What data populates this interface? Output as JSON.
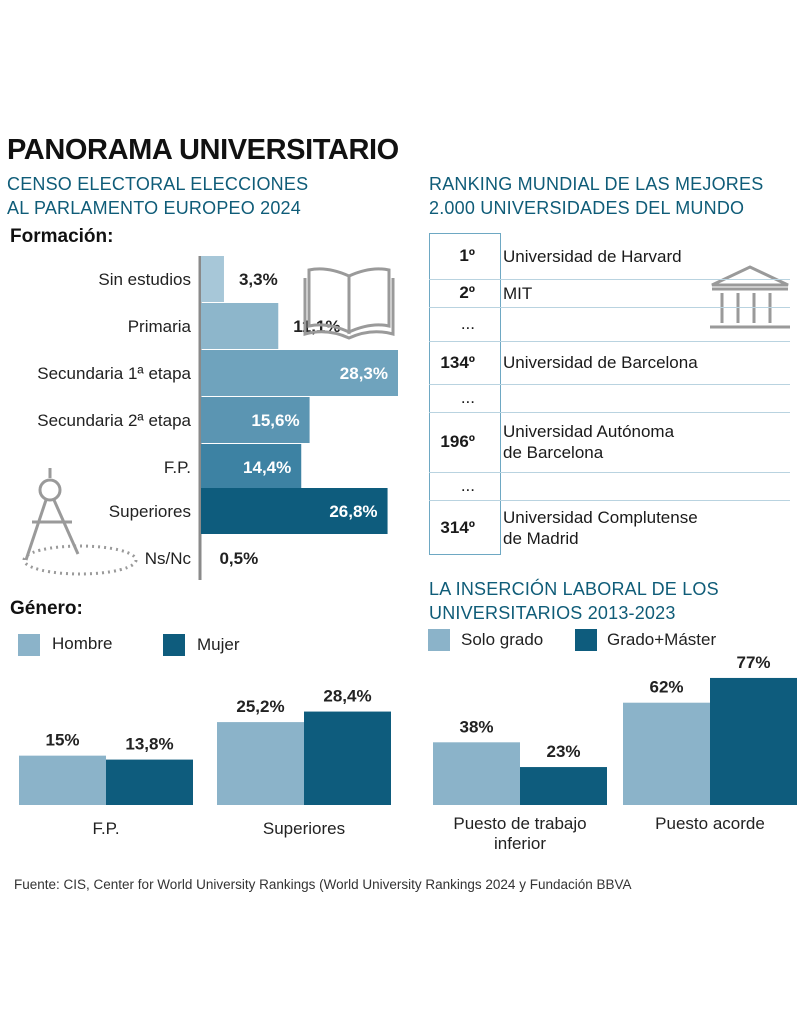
{
  "title": "PANORAMA UNIVERSITARIO",
  "censo": {
    "subtitle_line1": "CENSO ELECTORAL ELECCIONES",
    "subtitle_line2": "AL PARLAMENTO EUROPEO 2024",
    "formacion_label": "Formación:",
    "genero_label": "Género:"
  },
  "ranking": {
    "subtitle_line1": "RANKING MUNDIAL DE LAS MEJORES",
    "subtitle_line2": "2.000 UNIVERSIDADES DEL MUNDO",
    "rows": [
      {
        "pos": "1º",
        "name_line1": "Universidad de Harvard",
        "name_line2": ""
      },
      {
        "pos": "2º",
        "name_line1": "MIT",
        "name_line2": ""
      },
      {
        "pos": "...",
        "name_line1": "",
        "name_line2": ""
      },
      {
        "pos": "134º",
        "name_line1": "Universidad de Barcelona",
        "name_line2": ""
      },
      {
        "pos": "...",
        "name_line1": "",
        "name_line2": ""
      },
      {
        "pos": "196º",
        "name_line1": "Universidad Autónoma",
        "name_line2": "de Barcelona"
      },
      {
        "pos": "...",
        "name_line1": "",
        "name_line2": ""
      },
      {
        "pos": "314º",
        "name_line1": "Universidad Complutense",
        "name_line2": "de Madrid"
      }
    ]
  },
  "insercion": {
    "subtitle_line1": "LA INSERCIÓN LABORAL DE LOS",
    "subtitle_line2": "UNIVERSITARIOS 2013-2023"
  },
  "source": "Fuente: CIS, Center for World University Rankings (World University Rankings 2024 y Fundación BBVA",
  "icons": [
    "book-icon",
    "compass-icon",
    "university-building-icon"
  ],
  "chart_data": [
    {
      "type": "bar",
      "orientation": "horizontal",
      "title": "Formación:",
      "categories": [
        "Sin estudios",
        "Primaria",
        "Secundaria 1ª etapa",
        "Secundaria 2ª etapa",
        "F.P.",
        "Superiores",
        "Ns/Nc"
      ],
      "values": [
        3.3,
        11.1,
        28.3,
        15.6,
        14.4,
        26.8,
        0.5
      ],
      "value_labels": [
        "3,3%",
        "11,1%",
        "28,3%",
        "15,6%",
        "14,4%",
        "26,8%",
        "0,5%"
      ],
      "colors": [
        "#a7c7d8",
        "#8db6cb",
        "#6fa3bd",
        "#5b95b2",
        "#3d82a3",
        "#0e5c7d",
        "#9a9a9a"
      ],
      "unit": "%"
    },
    {
      "type": "bar",
      "title": "Género:",
      "categories": [
        "F.P.",
        "Superiores"
      ],
      "series": [
        {
          "name": "Hombre",
          "values": [
            15,
            25.2
          ],
          "labels": [
            "15%",
            "25,2%"
          ],
          "color": "#8bb3c9"
        },
        {
          "name": "Mujer",
          "values": [
            13.8,
            28.4
          ],
          "labels": [
            "13,8%",
            "28,4%"
          ],
          "color": "#0e5c7d"
        }
      ],
      "unit": "%"
    },
    {
      "type": "bar",
      "title": "LA INSERCIÓN LABORAL DE LOS UNIVERSITARIOS 2013-2023",
      "categories": [
        "Puesto de trabajo inferior",
        "Puesto acorde"
      ],
      "category_lines": [
        [
          "Puesto de trabajo",
          "inferior"
        ],
        [
          "Puesto acorde"
        ]
      ],
      "series": [
        {
          "name": "Solo grado",
          "values": [
            38,
            62
          ],
          "labels": [
            "38%",
            "62%"
          ],
          "color": "#8bb3c9"
        },
        {
          "name": "Grado+Máster",
          "values": [
            23,
            77
          ],
          "labels": [
            "23%",
            "77%"
          ],
          "color": "#0e5c7d"
        }
      ],
      "unit": "%"
    }
  ]
}
